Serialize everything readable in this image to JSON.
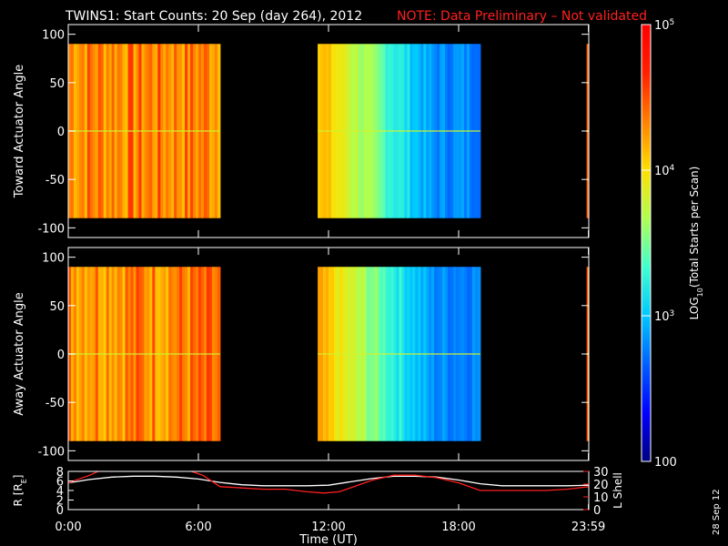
{
  "header": {
    "title": "TWINS1: Start Counts: 20 Sep (day 264), 2012",
    "note": "NOTE: Data Preliminary – Not validated"
  },
  "footer": {
    "date_stamp": "28 Sep 12"
  },
  "colors": {
    "background": "#000000",
    "axes": "#ffffff",
    "note": "#ff2020",
    "r_line": "#ffffff",
    "l_shell_line": "#ff2020"
  },
  "chart_data": [
    {
      "type": "heatmap",
      "name": "panel-toward",
      "ylabel": "Toward Actuator Angle",
      "ylim": [
        -110,
        110
      ],
      "yticks": [
        100,
        50,
        0,
        -50,
        -100
      ],
      "ytick_labels": [
        "100",
        "50",
        "0",
        "-50",
        "-100"
      ],
      "xlim_hours": [
        0,
        24
      ],
      "data_ylim": [
        -90,
        90
      ],
      "data_intervals_hours": [
        [
          0,
          7
        ],
        [
          11.5,
          19
        ],
        [
          23.9,
          24
        ]
      ],
      "data_coverage": "data present only in listed intervals; black elsewhere",
      "value_trend": "orange/red (~10^4.5) in first interval; decreases from yellow to blue (~10^3) across second interval; orange-red in last"
    },
    {
      "type": "heatmap",
      "name": "panel-away",
      "ylabel": "Away Actuator Angle",
      "ylim": [
        -110,
        110
      ],
      "yticks": [
        100,
        50,
        0,
        -50,
        -100
      ],
      "ytick_labels": [
        "100",
        "50",
        "0",
        "-50",
        "-100"
      ],
      "xlim_hours": [
        0,
        24
      ],
      "data_ylim": [
        -90,
        90
      ],
      "data_intervals_hours": [
        [
          0,
          7
        ],
        [
          11.5,
          19
        ],
        [
          23.9,
          24
        ]
      ],
      "data_coverage": "data present only in listed intervals; black elsewhere",
      "value_trend": "orange/red in first interval; decreases from yellow to blue across second interval; orange in last"
    },
    {
      "type": "line",
      "name": "orbit-panel",
      "xlabel": "Time (UT)",
      "xticks_hours": [
        0,
        6,
        12,
        18,
        23.983
      ],
      "xtick_labels": [
        "0:00",
        "6:00",
        "12:00",
        "18:00",
        "23:59"
      ],
      "xlim_hours": [
        0,
        24
      ],
      "left_axis": {
        "label": "R [R",
        "label_sub": "E",
        "label_suffix": "]",
        "ylim": [
          0,
          8
        ],
        "yticks": [
          0,
          2,
          4,
          6,
          8
        ],
        "ytick_labels": [
          "0",
          "2",
          "4",
          "6",
          "8"
        ]
      },
      "right_axis": {
        "label": "L Shell",
        "ylim": [
          0,
          30
        ],
        "yticks": [
          0,
          10,
          20,
          30
        ],
        "ytick_labels": [
          "0",
          "10",
          "20",
          "30"
        ]
      },
      "series": [
        {
          "axis": "left",
          "x": [
            0,
            1,
            2,
            3,
            4,
            5,
            6,
            7,
            8,
            9,
            10,
            11,
            12,
            13,
            14,
            15,
            16,
            17,
            18,
            19,
            20,
            21,
            22,
            23,
            24
          ],
          "y": [
            5.6,
            6.3,
            6.8,
            7.0,
            7.0,
            6.8,
            6.4,
            5.7,
            5.2,
            5.0,
            5.0,
            5.0,
            5.1,
            5.8,
            6.5,
            7.0,
            7.0,
            6.8,
            6.2,
            5.4,
            5.0,
            5.0,
            5.0,
            5.0,
            5.1
          ]
        },
        {
          "axis": "right",
          "x": [
            0,
            1,
            1.5,
            5.5,
            6.2,
            7,
            8,
            9,
            10,
            11,
            11.8,
            12.5,
            13,
            14,
            15,
            16,
            17,
            18,
            19,
            20,
            21,
            22,
            23,
            24
          ],
          "y": [
            21,
            27,
            31,
            31,
            27,
            18,
            17,
            16,
            16,
            14,
            13,
            14,
            17,
            23,
            27,
            27,
            25,
            21,
            15,
            15,
            15,
            15,
            16,
            18
          ]
        }
      ]
    },
    {
      "type": "colorbar",
      "name": "colorbar",
      "label": "LOG",
      "label_sub": "10",
      "label_suffix": "(Total Starts per Scan)",
      "scale": "log",
      "range": [
        100,
        100000
      ],
      "ticks": [
        100,
        1000,
        10000,
        100000
      ],
      "tick_labels": [
        {
          "text": "100",
          "sup": ""
        },
        {
          "text": "10",
          "sup": "3"
        },
        {
          "text": "10",
          "sup": "4"
        },
        {
          "text": "10",
          "sup": "5"
        }
      ],
      "colormap": [
        "#000080",
        "#0000ff",
        "#0060ff",
        "#00c8ff",
        "#40ffd0",
        "#b0ff50",
        "#ffe000",
        "#ff8000",
        "#ff2000",
        "#ff0000"
      ]
    }
  ]
}
